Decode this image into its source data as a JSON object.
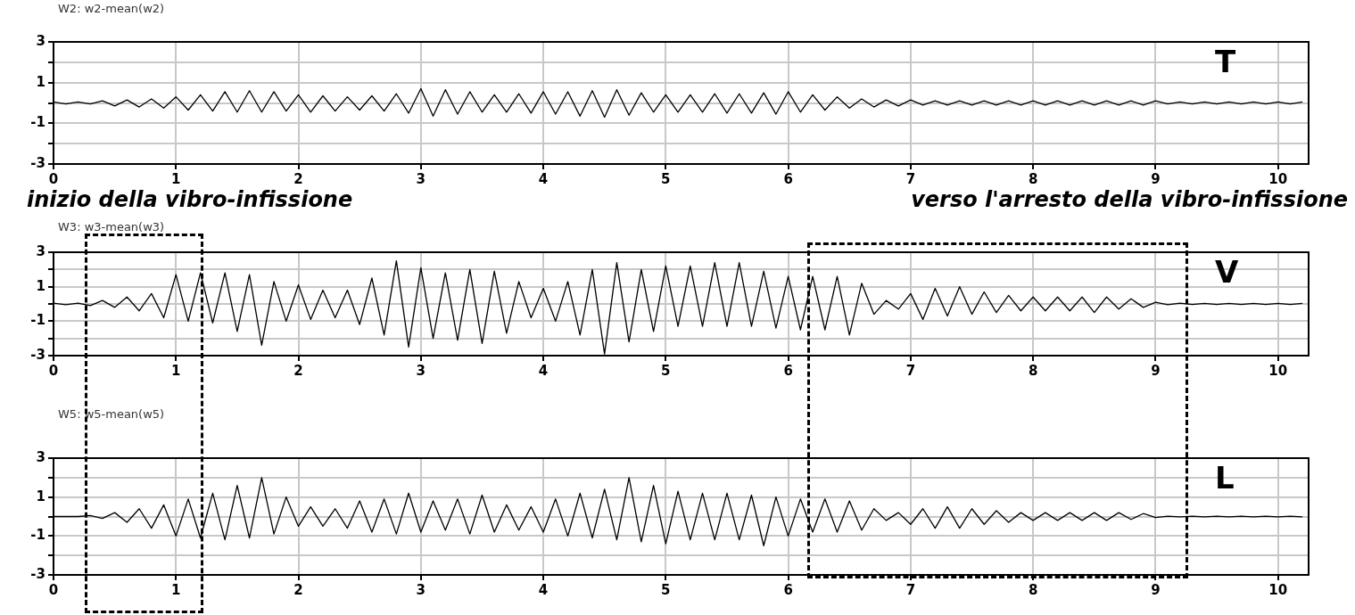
{
  "chart_data": [
    {
      "type": "line",
      "title": "W2: w2-mean(w2)",
      "annotations": [
        "T"
      ],
      "x": [
        0,
        0.1,
        0.2,
        0.3,
        0.4,
        0.5,
        0.6,
        0.7,
        0.8,
        0.9,
        1,
        1.1,
        1.2,
        1.3,
        1.4,
        1.5,
        1.6,
        1.7,
        1.8,
        1.9,
        2,
        2.1,
        2.2,
        2.3,
        2.4,
        2.5,
        2.6,
        2.7,
        2.8,
        2.9,
        3,
        3.1,
        3.2,
        3.3,
        3.4,
        3.5,
        3.6,
        3.7,
        3.8,
        3.9,
        4,
        4.1,
        4.2,
        4.3,
        4.4,
        4.5,
        4.6,
        4.7,
        4.8,
        4.9,
        5,
        5.1,
        5.2,
        5.3,
        5.4,
        5.5,
        5.6,
        5.7,
        5.8,
        5.9,
        6,
        6.1,
        6.2,
        6.3,
        6.4,
        6.5,
        6.6,
        6.7,
        6.8,
        6.9,
        7,
        7.1,
        7.2,
        7.3,
        7.4,
        7.5,
        7.6,
        7.7,
        7.8,
        7.9,
        8,
        8.1,
        8.2,
        8.3,
        8.4,
        8.5,
        8.6,
        8.7,
        8.8,
        8.9,
        9,
        9.1,
        9.2,
        9.3,
        9.4,
        9.5,
        9.6,
        9.7,
        9.8,
        9.9,
        10,
        10.1,
        10.2
      ],
      "series": [
        {
          "color": "#000000",
          "values": [
            0.05,
            -0.05,
            0.05,
            -0.05,
            0.1,
            -0.15,
            0.15,
            -0.2,
            0.2,
            -0.25,
            0.3,
            -0.35,
            0.4,
            -0.4,
            0.55,
            -0.45,
            0.6,
            -0.45,
            0.55,
            -0.4,
            0.4,
            -0.45,
            0.35,
            -0.4,
            0.3,
            -0.35,
            0.35,
            -0.4,
            0.45,
            -0.5,
            0.7,
            -0.65,
            0.65,
            -0.55,
            0.55,
            -0.45,
            0.4,
            -0.45,
            0.45,
            -0.5,
            0.55,
            -0.55,
            0.55,
            -0.65,
            0.6,
            -0.7,
            0.65,
            -0.6,
            0.5,
            -0.45,
            0.4,
            -0.45,
            0.4,
            -0.45,
            0.45,
            -0.5,
            0.45,
            -0.5,
            0.5,
            -0.55,
            0.55,
            -0.45,
            0.4,
            -0.35,
            0.3,
            -0.25,
            0.2,
            -0.2,
            0.15,
            -0.15,
            0.15,
            -0.1,
            0.1,
            -0.1,
            0.1,
            -0.1,
            0.1,
            -0.1,
            0.1,
            -0.1,
            0.1,
            -0.1,
            0.1,
            -0.1,
            0.1,
            -0.1,
            0.1,
            -0.1,
            0.1,
            -0.1,
            0.1,
            -0.05,
            0.05,
            -0.05,
            0.05,
            -0.05,
            0.05,
            -0.05,
            0.05,
            -0.05,
            0.05,
            -0.05,
            0.05
          ]
        }
      ],
      "xlim": [
        0,
        10.25
      ],
      "xticks": [
        0,
        1,
        2,
        3,
        4,
        5,
        6,
        7,
        8,
        9,
        10
      ],
      "ylim": [
        -3,
        3
      ],
      "yticks": [
        -3,
        {
          "value": -2,
          "label": null
        },
        -1,
        {
          "value": 0,
          "label": null
        },
        1,
        {
          "value": 2,
          "label": null
        },
        3
      ],
      "grid": true,
      "legend": false,
      "marker": "none",
      "line_style": "solid"
    },
    {
      "type": "line",
      "title": "W3: w3-mean(w3)",
      "annotations": [
        "inizio della vibro-infissione",
        "verso l'arresto della vibro-infissione",
        "V"
      ],
      "x": [
        0,
        0.1,
        0.2,
        0.3,
        0.4,
        0.5,
        0.6,
        0.7,
        0.8,
        0.9,
        1,
        1.1,
        1.2,
        1.3,
        1.4,
        1.5,
        1.6,
        1.7,
        1.8,
        1.9,
        2,
        2.1,
        2.2,
        2.3,
        2.4,
        2.5,
        2.6,
        2.7,
        2.8,
        2.9,
        3,
        3.1,
        3.2,
        3.3,
        3.4,
        3.5,
        3.6,
        3.7,
        3.8,
        3.9,
        4,
        4.1,
        4.2,
        4.3,
        4.4,
        4.5,
        4.6,
        4.7,
        4.8,
        4.9,
        5,
        5.1,
        5.2,
        5.3,
        5.4,
        5.5,
        5.6,
        5.7,
        5.8,
        5.9,
        6,
        6.1,
        6.2,
        6.3,
        6.4,
        6.5,
        6.6,
        6.7,
        6.8,
        6.9,
        7,
        7.1,
        7.2,
        7.3,
        7.4,
        7.5,
        7.6,
        7.7,
        7.8,
        7.9,
        8,
        8.1,
        8.2,
        8.3,
        8.4,
        8.5,
        8.6,
        8.7,
        8.8,
        8.9,
        9,
        9.1,
        9.2,
        9.3,
        9.4,
        9.5,
        9.6,
        9.7,
        9.8,
        9.9,
        10,
        10.1,
        10.2
      ],
      "series": [
        {
          "color": "#000000",
          "values": [
            0.05,
            -0.05,
            0.05,
            -0.1,
            0.2,
            -0.2,
            0.4,
            -0.4,
            0.6,
            -0.8,
            1.7,
            -1.0,
            1.8,
            -1.1,
            1.8,
            -1.6,
            1.7,
            -2.4,
            1.3,
            -1.0,
            1.1,
            -0.9,
            0.8,
            -0.8,
            0.8,
            -1.2,
            1.5,
            -1.8,
            2.5,
            -2.5,
            2.1,
            -2.0,
            1.8,
            -2.1,
            2.0,
            -2.3,
            1.9,
            -1.7,
            1.3,
            -0.8,
            0.9,
            -1.0,
            1.3,
            -1.8,
            2.0,
            -2.9,
            2.4,
            -2.2,
            2.0,
            -1.6,
            2.2,
            -1.3,
            2.2,
            -1.3,
            2.4,
            -1.3,
            2.4,
            -1.3,
            1.9,
            -1.4,
            1.6,
            -1.5,
            1.6,
            -1.5,
            1.6,
            -1.8,
            1.2,
            -0.6,
            0.2,
            -0.3,
            0.6,
            -0.9,
            0.9,
            -0.7,
            1.0,
            -0.6,
            0.7,
            -0.5,
            0.5,
            -0.4,
            0.4,
            -0.4,
            0.4,
            -0.4,
            0.4,
            -0.5,
            0.4,
            -0.3,
            0.3,
            -0.2,
            0.1,
            -0.05,
            0.05,
            -0.03,
            0.03,
            -0.03,
            0.03,
            -0.03,
            0.03,
            -0.03,
            0.03,
            -0.03,
            0.03
          ]
        }
      ],
      "xlim": [
        0,
        10.25
      ],
      "xticks": [
        0,
        1,
        2,
        3,
        4,
        5,
        6,
        7,
        8,
        9,
        10
      ],
      "ylim": [
        -3,
        3
      ],
      "yticks": [
        -3,
        {
          "value": -2,
          "label": null
        },
        -1,
        {
          "value": 0,
          "label": null
        },
        1,
        {
          "value": 2,
          "label": null
        },
        3
      ],
      "grid": true,
      "legend": false,
      "marker": "none",
      "line_style": "solid"
    },
    {
      "type": "line",
      "title": "W5: w5-mean(w5)",
      "annotations": [
        "L"
      ],
      "x": [
        0,
        0.1,
        0.2,
        0.3,
        0.4,
        0.5,
        0.6,
        0.7,
        0.8,
        0.9,
        1,
        1.1,
        1.2,
        1.3,
        1.4,
        1.5,
        1.6,
        1.7,
        1.8,
        1.9,
        2,
        2.1,
        2.2,
        2.3,
        2.4,
        2.5,
        2.6,
        2.7,
        2.8,
        2.9,
        3,
        3.1,
        3.2,
        3.3,
        3.4,
        3.5,
        3.6,
        3.7,
        3.8,
        3.9,
        4,
        4.1,
        4.2,
        4.3,
        4.4,
        4.5,
        4.6,
        4.7,
        4.8,
        4.9,
        5,
        5.1,
        5.2,
        5.3,
        5.4,
        5.5,
        5.6,
        5.7,
        5.8,
        5.9,
        6,
        6.1,
        6.2,
        6.3,
        6.4,
        6.5,
        6.6,
        6.7,
        6.8,
        6.9,
        7,
        7.1,
        7.2,
        7.3,
        7.4,
        7.5,
        7.6,
        7.7,
        7.8,
        7.9,
        8,
        8.1,
        8.2,
        8.3,
        8.4,
        8.5,
        8.6,
        8.7,
        8.8,
        8.9,
        9,
        9.1,
        9.2,
        9.3,
        9.4,
        9.5,
        9.6,
        9.7,
        9.8,
        9.9,
        10,
        10.1,
        10.2
      ],
      "series": [
        {
          "color": "#000000",
          "values": [
            0,
            0,
            0,
            0.05,
            -0.1,
            0.2,
            -0.3,
            0.4,
            -0.6,
            0.6,
            -1.0,
            0.9,
            -1.1,
            1.2,
            -1.2,
            1.6,
            -1.1,
            2.0,
            -0.9,
            1.0,
            -0.5,
            0.5,
            -0.5,
            0.4,
            -0.6,
            0.8,
            -0.8,
            0.9,
            -0.9,
            1.2,
            -0.8,
            0.8,
            -0.7,
            0.9,
            -0.9,
            1.1,
            -0.8,
            0.6,
            -0.7,
            0.5,
            -0.8,
            0.9,
            -1.0,
            1.2,
            -1.1,
            1.4,
            -1.2,
            2.0,
            -1.3,
            1.6,
            -1.4,
            1.3,
            -1.2,
            1.2,
            -1.2,
            1.2,
            -1.2,
            1.1,
            -1.5,
            1.0,
            -1.0,
            0.9,
            -0.8,
            0.9,
            -0.8,
            0.8,
            -0.7,
            0.4,
            -0.2,
            0.2,
            -0.4,
            0.4,
            -0.6,
            0.5,
            -0.6,
            0.4,
            -0.4,
            0.3,
            -0.3,
            0.2,
            -0.2,
            0.2,
            -0.2,
            0.2,
            -0.2,
            0.2,
            -0.2,
            0.2,
            -0.15,
            0.15,
            -0.05,
            0.02,
            -0.02,
            0.02,
            -0.02,
            0.02,
            -0.02,
            0.02,
            -0.02,
            0.02,
            -0.02,
            0.02,
            -0.02
          ]
        }
      ],
      "xlim": [
        0,
        10.25
      ],
      "xticks": [
        0,
        1,
        2,
        3,
        4,
        5,
        6,
        7,
        8,
        9,
        10
      ],
      "ylim": [
        -3,
        3
      ],
      "yticks": [
        -3,
        {
          "value": -2,
          "label": null
        },
        -1,
        {
          "value": 0,
          "label": null
        },
        1,
        {
          "value": 2,
          "label": null
        },
        3
      ],
      "grid": true,
      "legend": false,
      "marker": "none",
      "line_style": "solid"
    }
  ]
}
